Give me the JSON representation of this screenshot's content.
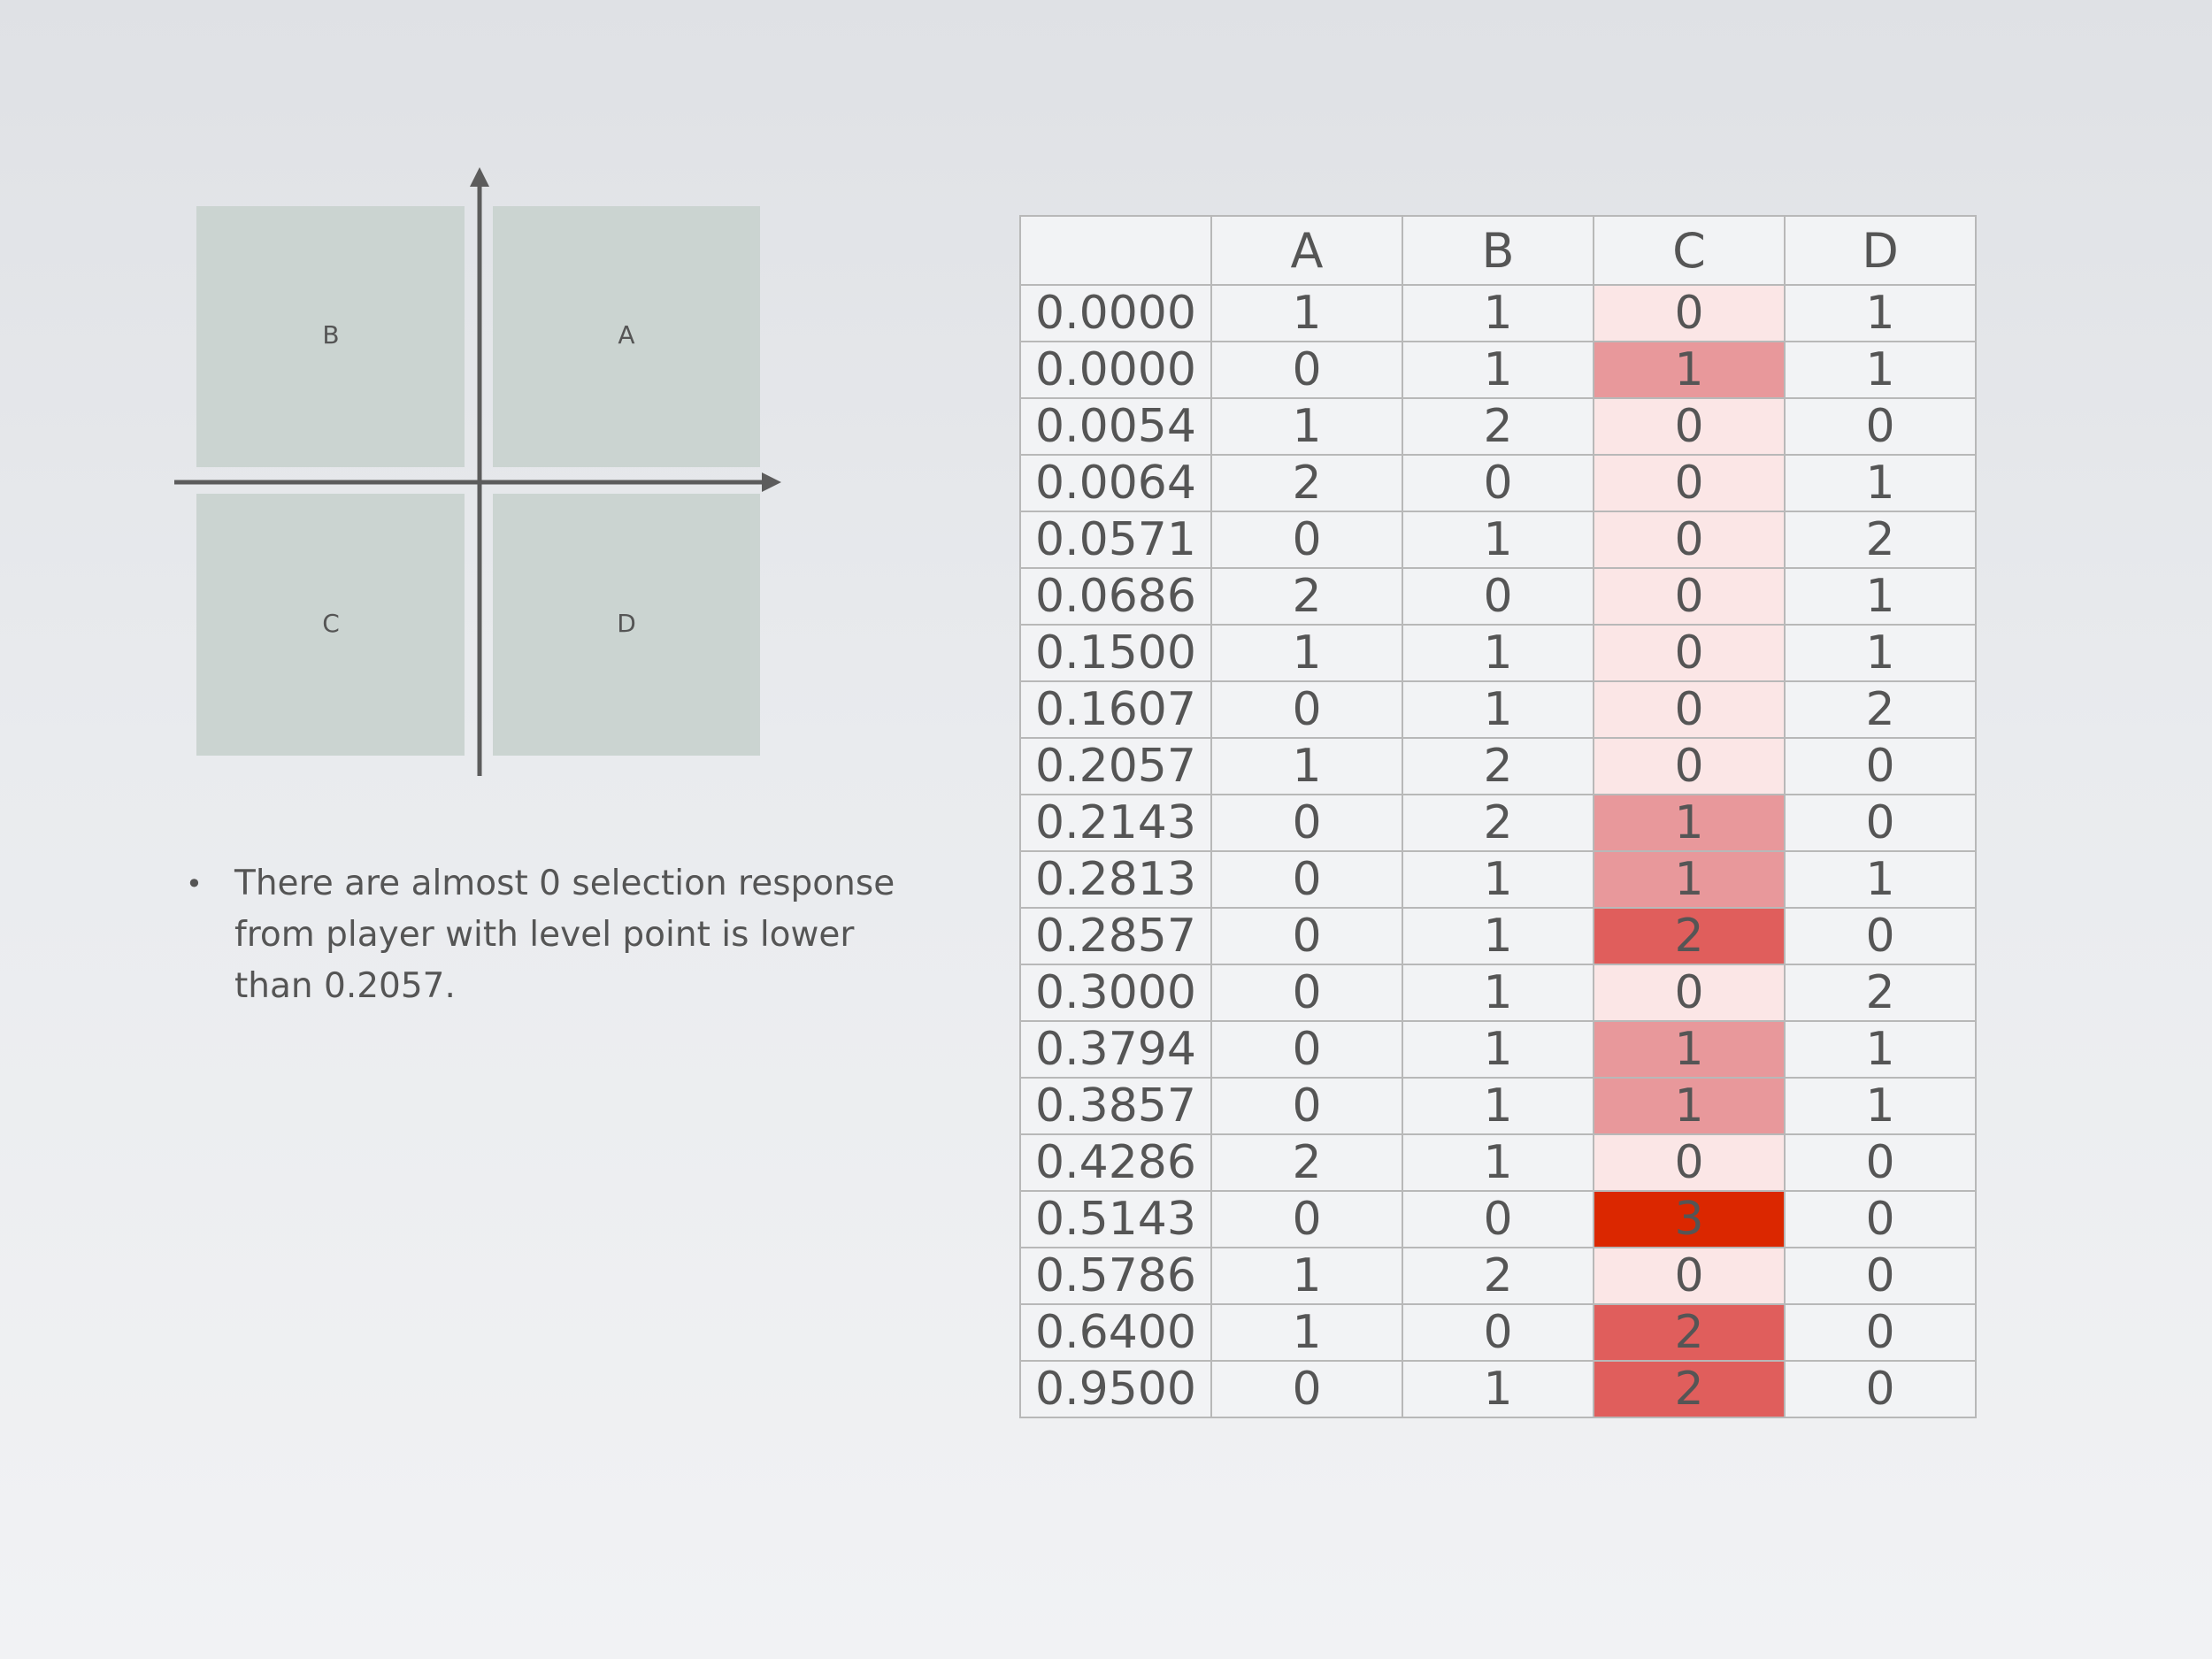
{
  "diagram": {
    "quadrant_labels": {
      "top_left": "B",
      "top_right": "A",
      "bottom_left": "C",
      "bottom_right": "D"
    },
    "colors": {
      "quadrant_fill": "#cbd4d1",
      "axis": "#5c5c5c"
    }
  },
  "note": {
    "bullet": "•",
    "text": "There are almost 0 selection response from player with level point is lower than 0.2057."
  },
  "colors": {
    "heat_0": "#fbe6e6",
    "heat_1": "#e8989b",
    "heat_2": "#e05e5c",
    "heat_3": "#db2700"
  },
  "chart_data": {
    "type": "table",
    "columns": [
      "",
      "A",
      "B",
      "C",
      "D"
    ],
    "highlighted_column": "C",
    "rows": [
      {
        "level": "0.0000",
        "A": 1,
        "B": 1,
        "C": 0,
        "D": 1
      },
      {
        "level": "0.0000",
        "A": 0,
        "B": 1,
        "C": 1,
        "D": 1
      },
      {
        "level": "0.0054",
        "A": 1,
        "B": 2,
        "C": 0,
        "D": 0
      },
      {
        "level": "0.0064",
        "A": 2,
        "B": 0,
        "C": 0,
        "D": 1
      },
      {
        "level": "0.0571",
        "A": 0,
        "B": 1,
        "C": 0,
        "D": 2
      },
      {
        "level": "0.0686",
        "A": 2,
        "B": 0,
        "C": 0,
        "D": 1
      },
      {
        "level": "0.1500",
        "A": 1,
        "B": 1,
        "C": 0,
        "D": 1
      },
      {
        "level": "0.1607",
        "A": 0,
        "B": 1,
        "C": 0,
        "D": 2
      },
      {
        "level": "0.2057",
        "A": 1,
        "B": 2,
        "C": 0,
        "D": 0
      },
      {
        "level": "0.2143",
        "A": 0,
        "B": 2,
        "C": 1,
        "D": 0
      },
      {
        "level": "0.2813",
        "A": 0,
        "B": 1,
        "C": 1,
        "D": 1
      },
      {
        "level": "0.2857",
        "A": 0,
        "B": 1,
        "C": 2,
        "D": 0
      },
      {
        "level": "0.3000",
        "A": 0,
        "B": 1,
        "C": 0,
        "D": 2
      },
      {
        "level": "0.3794",
        "A": 0,
        "B": 1,
        "C": 1,
        "D": 1
      },
      {
        "level": "0.3857",
        "A": 0,
        "B": 1,
        "C": 1,
        "D": 1
      },
      {
        "level": "0.4286",
        "A": 2,
        "B": 1,
        "C": 0,
        "D": 0
      },
      {
        "level": "0.5143",
        "A": 0,
        "B": 0,
        "C": 3,
        "D": 0
      },
      {
        "level": "0.5786",
        "A": 1,
        "B": 2,
        "C": 0,
        "D": 0
      },
      {
        "level": "0.6400",
        "A": 1,
        "B": 0,
        "C": 2,
        "D": 0
      },
      {
        "level": "0.9500",
        "A": 0,
        "B": 1,
        "C": 2,
        "D": 0
      }
    ]
  }
}
